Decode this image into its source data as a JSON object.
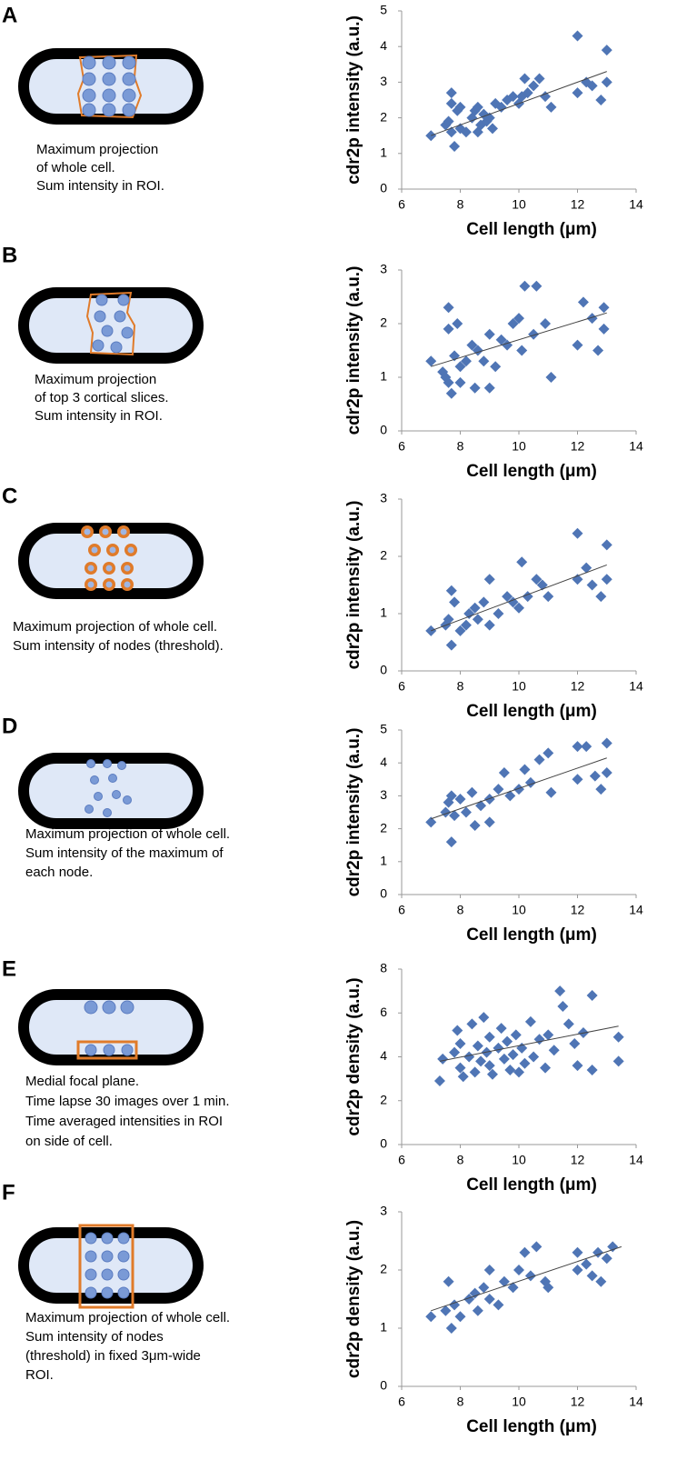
{
  "chart_data": [
    {
      "type": "scatter",
      "panel_label": "A",
      "caption": [
        "Maximum projection",
        "of whole cell.",
        "Sum intensity in ROI."
      ],
      "xlabel": "Cell length (μm)",
      "ylabel": "cdr2p intensity (a.u.)",
      "color": "#4f75b5",
      "x": [
        7,
        7.5,
        7.6,
        7.7,
        7.7,
        7.7,
        7.8,
        7.9,
        8,
        8,
        8.2,
        8.4,
        8.5,
        8.6,
        8.6,
        8.7,
        8.8,
        8.9,
        9,
        9.1,
        9.2,
        9.4,
        9.6,
        9.8,
        10,
        10.1,
        10.2,
        10.3,
        10.5,
        10.7,
        10.9,
        11.1,
        12,
        12,
        12.3,
        12.5,
        12.8,
        13,
        13
      ],
      "y": [
        1.5,
        1.8,
        1.9,
        1.6,
        2.7,
        2.4,
        1.2,
        2.2,
        2.3,
        1.7,
        1.6,
        2.0,
        2.2,
        1.6,
        2.3,
        1.8,
        2.1,
        1.9,
        2.0,
        1.7,
        2.4,
        2.3,
        2.5,
        2.6,
        2.4,
        2.6,
        3.1,
        2.7,
        2.9,
        3.1,
        2.6,
        2.3,
        4.3,
        2.7,
        3.0,
        2.9,
        2.5,
        3.9,
        3.0
      ],
      "trend_x": [
        7,
        13
      ],
      "trend_y": [
        1.5,
        3.3
      ],
      "xlim": [
        6,
        14
      ],
      "ylim": [
        0,
        5
      ],
      "xticks": [
        6,
        8,
        10,
        12,
        14
      ],
      "yticks": [
        0,
        1,
        2,
        3,
        4,
        5
      ]
    },
    {
      "type": "scatter",
      "panel_label": "B",
      "caption": [
        "Maximum projection",
        "of top 3 cortical slices.",
        "Sum intensity in ROI."
      ],
      "xlabel": "Cell length (μm)",
      "ylabel": "cdr2p intensity (a.u.)",
      "color": "#4f75b5",
      "x": [
        7,
        7.4,
        7.5,
        7.6,
        7.6,
        7.6,
        7.7,
        7.8,
        7.9,
        8,
        8,
        8.2,
        8.4,
        8.5,
        8.6,
        8.8,
        9,
        9,
        9.2,
        9.4,
        9.6,
        9.8,
        10,
        10.1,
        10.2,
        10.5,
        10.6,
        10.9,
        11.1,
        12,
        12.2,
        12.5,
        12.7,
        12.9,
        12.9
      ],
      "y": [
        1.3,
        1.1,
        1.0,
        0.9,
        1.9,
        2.3,
        0.7,
        1.4,
        2.0,
        1.2,
        0.9,
        1.3,
        1.6,
        0.8,
        1.5,
        1.3,
        1.8,
        0.8,
        1.2,
        1.7,
        1.6,
        2.0,
        2.1,
        1.5,
        2.7,
        1.8,
        2.7,
        2.0,
        1.0,
        1.6,
        2.4,
        2.1,
        1.5,
        1.9,
        2.3
      ],
      "trend_x": [
        7,
        13
      ],
      "trend_y": [
        1.2,
        2.2
      ],
      "xlim": [
        6,
        14
      ],
      "ylim": [
        0,
        3
      ],
      "xticks": [
        6,
        8,
        10,
        12,
        14
      ],
      "yticks": [
        0,
        1,
        2,
        3
      ]
    },
    {
      "type": "scatter",
      "panel_label": "C",
      "caption": [
        "Maximum projection of whole cell.",
        "Sum intensity of nodes (threshold)."
      ],
      "xlabel": "Cell length (μm)",
      "ylabel": "cdr2p intensity (a.u.)",
      "color": "#4f75b5",
      "x": [
        7,
        7.5,
        7.6,
        7.7,
        7.7,
        7.8,
        8,
        8.2,
        8.3,
        8.5,
        8.6,
        8.8,
        9,
        9,
        9.3,
        9.6,
        9.8,
        10,
        10.1,
        10.3,
        10.6,
        10.8,
        11,
        12,
        12,
        12.3,
        12.5,
        12.8,
        13,
        13
      ],
      "y": [
        0.7,
        0.8,
        0.9,
        1.4,
        0.45,
        1.2,
        0.7,
        0.8,
        1.0,
        1.1,
        0.9,
        1.2,
        1.6,
        0.8,
        1.0,
        1.3,
        1.2,
        1.1,
        1.9,
        1.3,
        1.6,
        1.5,
        1.3,
        2.4,
        1.6,
        1.8,
        1.5,
        1.3,
        2.2,
        1.6
      ],
      "trend_x": [
        7,
        13
      ],
      "trend_y": [
        0.7,
        1.85
      ],
      "xlim": [
        6,
        14
      ],
      "ylim": [
        0,
        3
      ],
      "xticks": [
        6,
        8,
        10,
        12,
        14
      ],
      "yticks": [
        0,
        1,
        2,
        3
      ]
    },
    {
      "type": "scatter",
      "panel_label": "D",
      "caption": [
        "Maximum projection of whole cell.",
        "Sum intensity of the maximum of",
        "each node."
      ],
      "xlabel": "Cell length (μm)",
      "ylabel": "cdr2p intensity (a.u.)",
      "color": "#4f75b5",
      "x": [
        7,
        7.5,
        7.6,
        7.7,
        7.7,
        7.8,
        8,
        8.2,
        8.4,
        8.5,
        8.7,
        9,
        9,
        9.3,
        9.5,
        9.7,
        10,
        10.2,
        10.4,
        10.7,
        11,
        11.1,
        12,
        12,
        12.3,
        12.6,
        12.8,
        13,
        13
      ],
      "y": [
        2.2,
        2.5,
        2.8,
        3.0,
        1.6,
        2.4,
        2.9,
        2.5,
        3.1,
        2.1,
        2.7,
        2.9,
        2.2,
        3.2,
        3.7,
        3.0,
        3.2,
        3.8,
        3.4,
        4.1,
        4.3,
        3.1,
        4.5,
        3.5,
        4.5,
        3.6,
        3.2,
        4.6,
        3.7
      ],
      "trend_x": [
        7,
        13
      ],
      "trend_y": [
        2.3,
        4.15
      ],
      "xlim": [
        6,
        14
      ],
      "ylim": [
        0,
        5
      ],
      "xticks": [
        6,
        8,
        10,
        12,
        14
      ],
      "yticks": [
        0,
        1,
        2,
        3,
        4,
        5
      ]
    },
    {
      "type": "scatter",
      "panel_label": "E",
      "caption": [
        "Medial focal plane.",
        "Time lapse 30 images over 1 min.",
        "Time averaged intensities in ROI",
        "on side of cell."
      ],
      "xlabel": "Cell length (μm)",
      "ylabel": "cdr2p density (a.u.)",
      "color": "#4f75b5",
      "x": [
        7.3,
        7.4,
        7.8,
        7.9,
        8,
        8,
        8.1,
        8.3,
        8.4,
        8.5,
        8.6,
        8.7,
        8.8,
        8.9,
        9,
        9,
        9.1,
        9.3,
        9.4,
        9.5,
        9.6,
        9.7,
        9.8,
        9.9,
        10,
        10.1,
        10.2,
        10.4,
        10.5,
        10.7,
        10.9,
        11,
        11.2,
        11.4,
        11.5,
        11.7,
        11.9,
        12,
        12.2,
        12.5,
        12.5,
        13.4,
        13.4
      ],
      "y": [
        2.9,
        3.9,
        4.2,
        5.2,
        3.5,
        4.6,
        3.1,
        4.0,
        5.5,
        3.3,
        4.5,
        3.8,
        5.8,
        4.2,
        3.6,
        4.9,
        3.2,
        4.4,
        5.3,
        3.9,
        4.7,
        3.4,
        4.1,
        5.0,
        3.3,
        4.4,
        3.7,
        5.6,
        4.0,
        4.8,
        3.5,
        5.0,
        4.3,
        7.0,
        6.3,
        5.5,
        4.6,
        3.6,
        5.1,
        6.8,
        3.4,
        4.9,
        3.8
      ],
      "trend_x": [
        7.3,
        13.4
      ],
      "trend_y": [
        3.8,
        5.4
      ],
      "xlim": [
        6,
        14
      ],
      "ylim": [
        0,
        8
      ],
      "xticks": [
        6,
        8,
        10,
        12,
        14
      ],
      "yticks": [
        0,
        2,
        4,
        6,
        8
      ]
    },
    {
      "type": "scatter",
      "panel_label": "F",
      "caption": [
        "Maximum projection of whole cell.",
        "Sum intensity of nodes",
        "(threshold) in fixed 3μm-wide",
        "ROI."
      ],
      "xlabel": "Cell length (μm)",
      "ylabel": "cdr2p density (a.u.)",
      "color": "#4f75b5",
      "x": [
        7,
        7.5,
        7.6,
        7.7,
        7.8,
        8,
        8.3,
        8.5,
        8.6,
        8.8,
        9,
        9,
        9.3,
        9.5,
        9.8,
        10,
        10.2,
        10.4,
        10.6,
        10.9,
        11,
        12,
        12,
        12.3,
        12.5,
        12.7,
        12.8,
        13,
        13.2
      ],
      "y": [
        1.2,
        1.3,
        1.8,
        1.0,
        1.4,
        1.2,
        1.5,
        1.6,
        1.3,
        1.7,
        1.5,
        2.0,
        1.4,
        1.8,
        1.7,
        2.0,
        2.3,
        1.9,
        2.4,
        1.8,
        1.7,
        2.3,
        2.0,
        2.1,
        1.9,
        2.3,
        1.8,
        2.2,
        2.4
      ],
      "trend_x": [
        7,
        13.5
      ],
      "trend_y": [
        1.3,
        2.4
      ],
      "xlim": [
        6,
        14
      ],
      "ylim": [
        0,
        3
      ],
      "xticks": [
        6,
        8,
        10,
        12,
        14
      ],
      "yticks": [
        0,
        1,
        2,
        3
      ]
    }
  ]
}
